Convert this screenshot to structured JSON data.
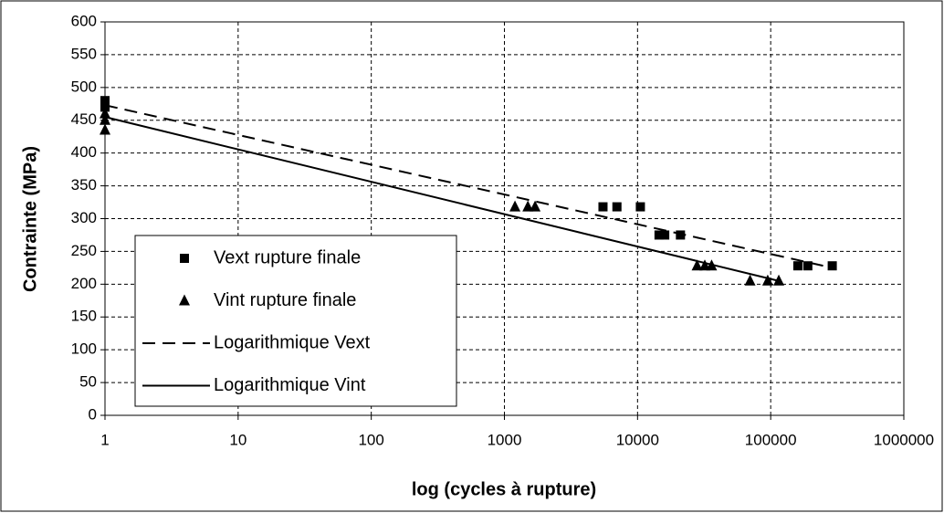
{
  "chart_data": {
    "type": "scatter",
    "x_label": "log (cycles à rupture)",
    "y_label": "Contrainte (MPa)",
    "xscale": "log",
    "xlim": [
      1,
      1000000
    ],
    "xticks": [
      1,
      10,
      100,
      1000,
      10000,
      100000,
      1000000
    ],
    "ylim": [
      0,
      600
    ],
    "yticks": [
      0,
      50,
      100,
      150,
      200,
      250,
      300,
      350,
      400,
      450,
      500,
      550,
      600
    ],
    "grid": true,
    "legend": "lower left",
    "series": [
      {
        "name": "Vext rupture finale",
        "color": "#000000",
        "marker": "square",
        "line": "none",
        "x": [
          1,
          1,
          5500,
          7000,
          10500,
          14500,
          16000,
          21000,
          160000,
          190000,
          290000
        ],
        "values": [
          480,
          470,
          318,
          318,
          318,
          275,
          275,
          275,
          228,
          228,
          228
        ]
      },
      {
        "name": "Vint rupture finale",
        "color": "#000000",
        "marker": "triangle",
        "line": "none",
        "x": [
          1,
          1,
          1,
          1200,
          1500,
          1700,
          28000,
          32000,
          36000,
          70000,
          95000,
          115000
        ],
        "values": [
          460,
          450,
          435,
          318,
          318,
          318,
          228,
          228,
          228,
          205,
          205,
          205
        ]
      },
      {
        "name": "Logarithmique Vext",
        "color": "#000000",
        "marker": "none",
        "line": "dashed",
        "x": [
          1,
          290000
        ],
        "values": [
          473,
          225
        ]
      },
      {
        "name": "Logarithmique Vint",
        "color": "#000000",
        "marker": "none",
        "line": "solid",
        "x": [
          1,
          115000
        ],
        "values": [
          455,
          205
        ]
      }
    ]
  }
}
